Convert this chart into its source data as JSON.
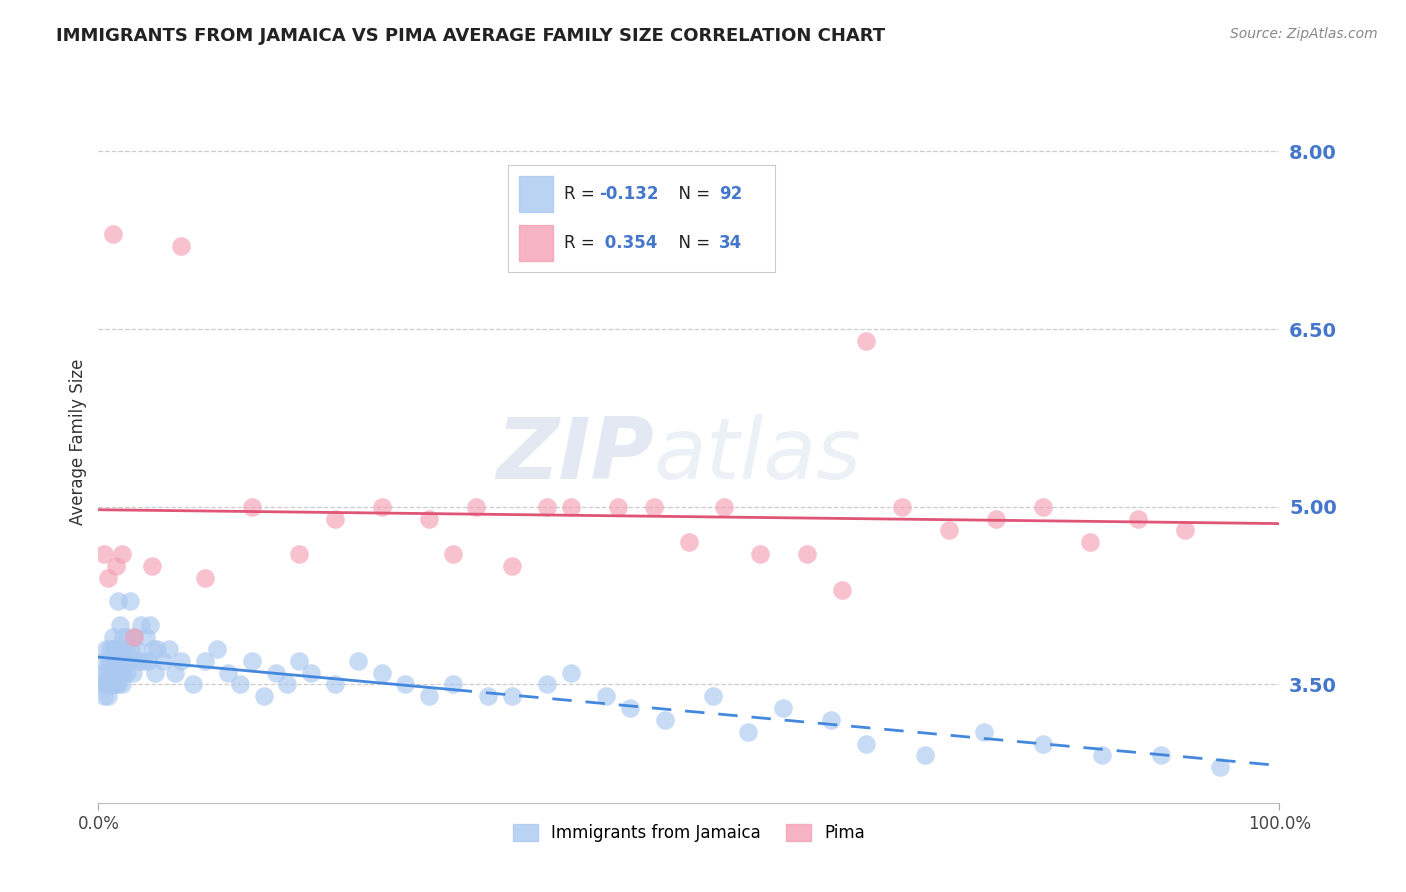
{
  "title": "IMMIGRANTS FROM JAMAICA VS PIMA AVERAGE FAMILY SIZE CORRELATION CHART",
  "source_text": "Source: ZipAtlas.com",
  "ylabel": "Average Family Size",
  "xlim": [
    0,
    100
  ],
  "ylim": [
    2.5,
    8.6
  ],
  "yticks": [
    3.5,
    5.0,
    6.5,
    8.0
  ],
  "xticklabels": [
    "0.0%",
    "100.0%"
  ],
  "ytick_color": "#4477cc",
  "grid_color": "#cccccc",
  "background_color": "#ffffff",
  "series1_label": "Immigrants from Jamaica",
  "series1_color": "#aac8f0",
  "series1_R": -0.132,
  "series1_N": 92,
  "series1_x": [
    0.3,
    0.4,
    0.5,
    0.5,
    0.6,
    0.6,
    0.7,
    0.7,
    0.8,
    0.9,
    1.0,
    1.0,
    1.0,
    1.1,
    1.1,
    1.2,
    1.2,
    1.3,
    1.3,
    1.4,
    1.4,
    1.5,
    1.5,
    1.6,
    1.6,
    1.7,
    1.7,
    1.8,
    1.8,
    1.9,
    2.0,
    2.0,
    2.1,
    2.1,
    2.2,
    2.3,
    2.4,
    2.5,
    2.6,
    2.7,
    2.8,
    2.9,
    3.0,
    3.2,
    3.4,
    3.6,
    3.8,
    4.0,
    4.2,
    4.4,
    4.6,
    4.8,
    5.0,
    5.5,
    6.0,
    6.5,
    7.0,
    8.0,
    9.0,
    10.0,
    11.0,
    12.0,
    13.0,
    14.0,
    15.0,
    16.0,
    17.0,
    18.0,
    20.0,
    22.0,
    24.0,
    26.0,
    28.0,
    30.0,
    33.0,
    35.0,
    38.0,
    40.0,
    43.0,
    45.0,
    48.0,
    52.0,
    55.0,
    58.0,
    62.0,
    65.0,
    70.0,
    75.0,
    80.0,
    85.0,
    90.0,
    95.0
  ],
  "series1_y": [
    3.5,
    3.6,
    3.4,
    3.7,
    3.5,
    3.8,
    3.5,
    3.6,
    3.4,
    3.7,
    3.5,
    3.8,
    3.6,
    3.5,
    3.7,
    3.6,
    3.9,
    3.5,
    3.8,
    3.6,
    3.7,
    3.5,
    3.8,
    3.6,
    3.7,
    3.5,
    4.2,
    3.6,
    4.0,
    3.7,
    3.5,
    3.8,
    3.6,
    3.9,
    3.7,
    3.8,
    3.6,
    3.9,
    3.7,
    4.2,
    3.8,
    3.6,
    3.9,
    3.8,
    3.7,
    4.0,
    3.7,
    3.9,
    3.7,
    4.0,
    3.8,
    3.6,
    3.8,
    3.7,
    3.8,
    3.6,
    3.7,
    3.5,
    3.7,
    3.8,
    3.6,
    3.5,
    3.7,
    3.4,
    3.6,
    3.5,
    3.7,
    3.6,
    3.5,
    3.7,
    3.6,
    3.5,
    3.4,
    3.5,
    3.4,
    3.4,
    3.5,
    3.6,
    3.4,
    3.3,
    3.2,
    3.4,
    3.1,
    3.3,
    3.2,
    3.0,
    2.9,
    3.1,
    3.0,
    2.9,
    2.9,
    2.8
  ],
  "series2_label": "Pima",
  "series2_color": "#f4a0b5",
  "series2_R": 0.354,
  "series2_N": 34,
  "series2_x": [
    0.5,
    0.8,
    1.5,
    2.0,
    3.0,
    4.5,
    7.0,
    9.0,
    13.0,
    17.0,
    20.0,
    24.0,
    28.0,
    30.0,
    32.0,
    35.0,
    38.0,
    40.0,
    44.0,
    47.0,
    50.0,
    53.0,
    56.0,
    60.0,
    63.0,
    65.0,
    68.0,
    72.0,
    76.0,
    80.0,
    84.0,
    88.0,
    92.0,
    1.2
  ],
  "series2_y": [
    4.6,
    4.4,
    4.5,
    4.6,
    3.9,
    4.5,
    7.2,
    4.4,
    5.0,
    4.6,
    4.9,
    5.0,
    4.9,
    4.6,
    5.0,
    4.5,
    5.0,
    5.0,
    5.0,
    5.0,
    4.7,
    5.0,
    4.6,
    4.6,
    4.3,
    6.4,
    5.0,
    4.8,
    4.9,
    5.0,
    4.7,
    4.9,
    4.8,
    7.3
  ],
  "series1_line_color": "#4488dd",
  "series2_line_color": "#e05575",
  "series1_line_intercept": 3.78,
  "series1_line_slope": -0.0048,
  "series2_line_intercept": 4.3,
  "series2_line_slope": 0.0075,
  "solid_end_x": 30,
  "watermark_zip": "ZIP",
  "watermark_atlas": "atlas",
  "watermark_color": "#bbccee"
}
